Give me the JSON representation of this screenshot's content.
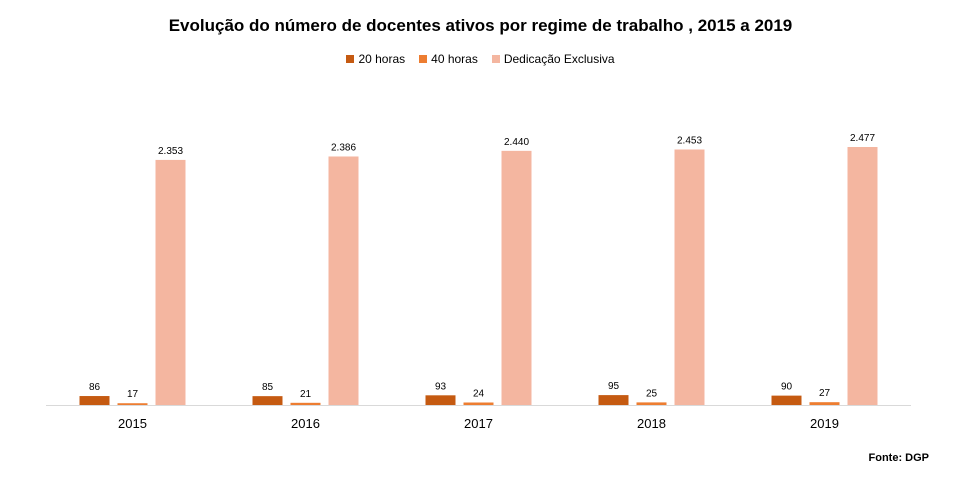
{
  "chart_data": {
    "type": "bar",
    "title": "Evolução do número de docentes ativos por regime de trabalho , 2015 a 2019",
    "categories": [
      "2015",
      "2016",
      "2017",
      "2018",
      "2019"
    ],
    "series": [
      {
        "name": "20 horas",
        "color": "#c55a11",
        "values": [
          86,
          85,
          93,
          95,
          90
        ],
        "labels": [
          "86",
          "85",
          "93",
          "95",
          "90"
        ]
      },
      {
        "name": "40 horas",
        "color": "#ed7d31",
        "values": [
          17,
          21,
          24,
          25,
          27
        ],
        "labels": [
          "17",
          "21",
          "24",
          "25",
          "27"
        ]
      },
      {
        "name": "Dedicação Exclusiva",
        "color": "#f4b6a0",
        "values": [
          2353,
          2386,
          2440,
          2453,
          2477
        ],
        "labels": [
          "2.353",
          "2.386",
          "2.440",
          "2.453",
          "2.477"
        ]
      }
    ],
    "legend_position": "top",
    "grid": false,
    "source": "Fonte: DGP"
  }
}
